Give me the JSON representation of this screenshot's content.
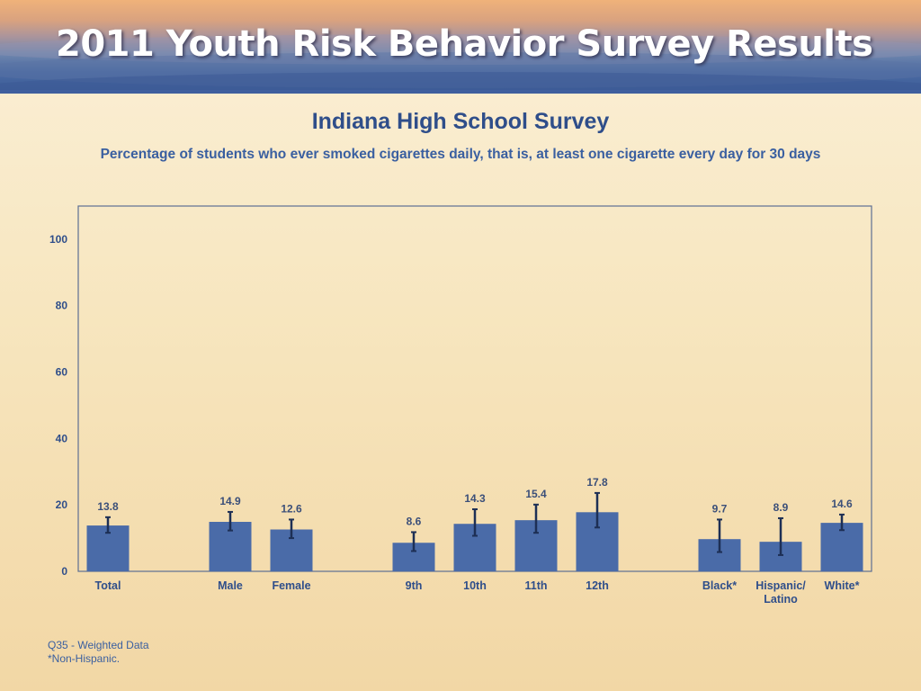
{
  "header": {
    "banner_title": "2011 Youth Risk Behavior Survey Results"
  },
  "chart_data": {
    "type": "bar",
    "title": "Indiana High School Survey",
    "subtitle": "Percentage of students who ever smoked cigarettes daily, that is, at least one cigarette every day for 30 days",
    "xlabel": "",
    "ylabel": "",
    "ylim": [
      0,
      110
    ],
    "yticks": [
      "0",
      "20",
      "40",
      "60",
      "80",
      "100"
    ],
    "grid": false,
    "bar_color": "#4a6ba8",
    "categories": [
      {
        "label": "Total",
        "group": 0,
        "value": 13.8,
        "ci_low": 11.6,
        "ci_high": 16.3
      },
      {
        "label": "Male",
        "group": 1,
        "value": 14.9,
        "ci_low": 12.3,
        "ci_high": 17.9
      },
      {
        "label": "Female",
        "group": 1,
        "value": 12.6,
        "ci_low": 10.0,
        "ci_high": 15.6
      },
      {
        "label": "9th",
        "group": 2,
        "value": 8.6,
        "ci_low": 6.1,
        "ci_high": 11.8
      },
      {
        "label": "10th",
        "group": 2,
        "value": 14.3,
        "ci_low": 10.7,
        "ci_high": 18.7
      },
      {
        "label": "11th",
        "group": 2,
        "value": 15.4,
        "ci_low": 11.6,
        "ci_high": 20.1
      },
      {
        "label": "12th",
        "group": 2,
        "value": 17.8,
        "ci_low": 13.2,
        "ci_high": 23.6
      },
      {
        "label": "Black*",
        "group": 3,
        "value": 9.7,
        "ci_low": 5.8,
        "ci_high": 15.6
      },
      {
        "label": "Hispanic/\nLatino",
        "group": 3,
        "value": 8.9,
        "ci_low": 4.9,
        "ci_high": 16.0
      },
      {
        "label": "White*",
        "group": 3,
        "value": 14.6,
        "ci_low": 12.4,
        "ci_high": 17.1
      }
    ],
    "value_labels": [
      "13.8",
      "14.9",
      "12.6",
      "8.6",
      "14.3",
      "15.4",
      "17.8",
      "9.7",
      "8.9",
      "14.6"
    ]
  },
  "notes": {
    "line1": "Q35 - Weighted Data",
    "line2": "*Non-Hispanic."
  }
}
